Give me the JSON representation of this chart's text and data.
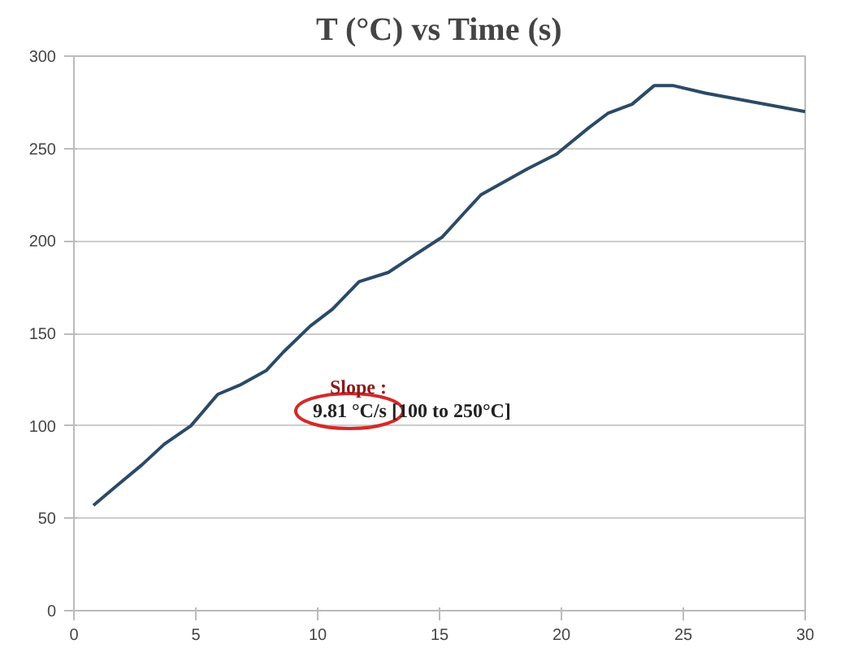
{
  "chart_data": {
    "type": "line",
    "title": "T (°C) vs Time (s)",
    "x": [
      0.8,
      1.7,
      2.8,
      3.7,
      4.8,
      5.9,
      6.8,
      7.9,
      8.6,
      9.7,
      10.6,
      11.7,
      12.9,
      13.7,
      15.1,
      16.0,
      16.7,
      18.6,
      19.8,
      21.1,
      21.9,
      22.9,
      23.8,
      24.6,
      25.9,
      30
    ],
    "series": [
      {
        "color": "#2b4a66",
        "values": [
          57,
          67,
          79,
          90,
          100,
          117,
          122,
          130,
          140,
          154,
          163,
          178,
          183,
          190,
          202,
          215,
          225,
          239,
          247,
          261,
          269,
          274,
          284,
          284,
          280,
          270
        ]
      }
    ],
    "xlim": [
      0,
      30
    ],
    "xticks": [
      0,
      5,
      10,
      15,
      20,
      25,
      30
    ],
    "ylim": [
      0,
      300
    ],
    "yticks": [
      0,
      50,
      100,
      150,
      200,
      250,
      300
    ],
    "grid": "y",
    "marker": "none",
    "line_style": "solid",
    "annotations": [
      "Slope :",
      "9.81 °C/s [100 to 250°C]"
    ]
  }
}
